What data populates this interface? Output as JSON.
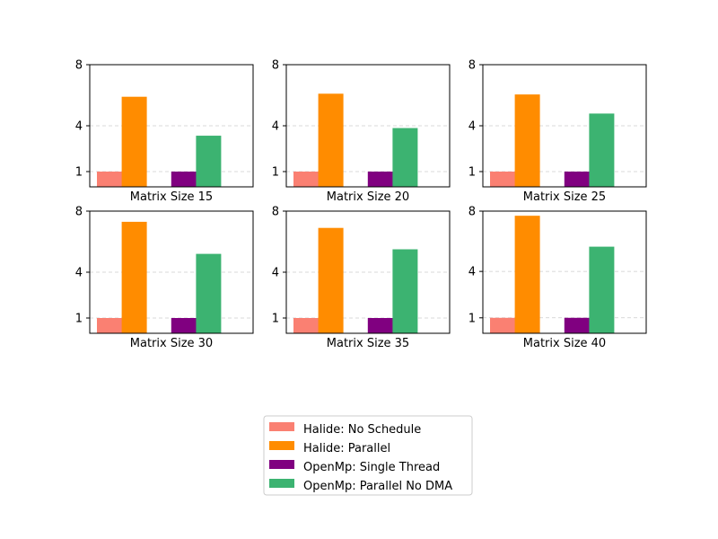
{
  "chart_data": [
    {
      "type": "bar",
      "xlabel": "Matrix Size 15",
      "ylim": [
        0,
        8
      ],
      "yticks": [
        1,
        4,
        8
      ],
      "grid": "y-dashed",
      "categories": [
        "Halide: No Schedule",
        "Halide: Parallel",
        "OpenMp: Single Thread",
        "OpenMp: Parallel No DMA"
      ],
      "values": [
        1.0,
        5.9,
        1.0,
        3.35
      ]
    },
    {
      "type": "bar",
      "xlabel": "Matrix Size 20",
      "ylim": [
        0,
        8
      ],
      "yticks": [
        1,
        4,
        8
      ],
      "grid": "y-dashed",
      "categories": [
        "Halide: No Schedule",
        "Halide: Parallel",
        "OpenMp: Single Thread",
        "OpenMp: Parallel No DMA"
      ],
      "values": [
        1.0,
        6.1,
        1.0,
        3.85
      ]
    },
    {
      "type": "bar",
      "xlabel": "Matrix Size 25",
      "ylim": [
        0,
        8
      ],
      "yticks": [
        1,
        4,
        8
      ],
      "grid": "y-dashed",
      "categories": [
        "Halide: No Schedule",
        "Halide: Parallel",
        "OpenMp: Single Thread",
        "OpenMp: Parallel No DMA"
      ],
      "values": [
        1.0,
        6.05,
        1.0,
        4.8
      ]
    },
    {
      "type": "bar",
      "xlabel": "Matrix Size 30",
      "ylim": [
        0,
        8
      ],
      "yticks": [
        1,
        4,
        8
      ],
      "grid": "y-dashed",
      "categories": [
        "Halide: No Schedule",
        "Halide: Parallel",
        "OpenMp: Single Thread",
        "OpenMp: Parallel No DMA"
      ],
      "values": [
        1.0,
        7.3,
        1.0,
        5.2
      ]
    },
    {
      "type": "bar",
      "xlabel": "Matrix Size 35",
      "ylim": [
        0,
        8
      ],
      "yticks": [
        1,
        4,
        8
      ],
      "grid": "y-dashed",
      "categories": [
        "Halide: No Schedule",
        "Halide: Parallel",
        "OpenMp: Single Thread",
        "OpenMp: Parallel No DMA"
      ],
      "values": [
        1.0,
        6.9,
        1.0,
        5.5
      ]
    },
    {
      "type": "bar",
      "xlabel": "Matrix Size 40",
      "ylim": [
        0,
        7.9
      ],
      "yticks": [
        1,
        4,
        8
      ],
      "grid": "y-dashed",
      "categories": [
        "Halide: No Schedule",
        "Halide: Parallel",
        "OpenMp: Single Thread",
        "OpenMp: Parallel No DMA"
      ],
      "values": [
        1.0,
        7.6,
        1.0,
        5.6
      ]
    }
  ],
  "legend": {
    "placement": "bottom-center",
    "items": [
      {
        "label": "Halide: No Schedule",
        "color": "#fa8072"
      },
      {
        "label": "Halide: Parallel",
        "color": "#ff8c00"
      },
      {
        "label": "OpenMp: Single Thread",
        "color": "#800080"
      },
      {
        "label": "OpenMp: Parallel No DMA",
        "color": "#3cb371"
      }
    ]
  }
}
